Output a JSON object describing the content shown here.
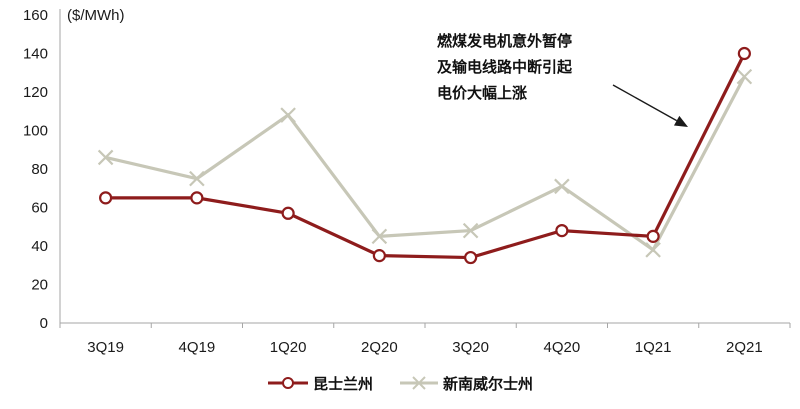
{
  "chart_data": {
    "type": "line",
    "title": "",
    "ylabel": "($/MWh)",
    "xlabel": "",
    "categories": [
      "3Q19",
      "4Q19",
      "1Q20",
      "2Q20",
      "3Q20",
      "4Q20",
      "1Q21",
      "2Q21"
    ],
    "series": [
      {
        "name": "昆士兰州",
        "values": [
          65,
          65,
          57,
          35,
          34,
          48,
          45,
          140
        ],
        "color": "#8E1C1C",
        "marker": "circle"
      },
      {
        "name": "新南威尔士州",
        "values": [
          86,
          75,
          108,
          45,
          48,
          71,
          38,
          128
        ],
        "color": "#C7C7B7",
        "marker": "x"
      }
    ],
    "ylim": [
      0,
      160
    ],
    "ytick_step": 20,
    "grid": false,
    "legend_position": "bottom",
    "annotation": {
      "lines": [
        "燃煤发电机意外暂停",
        "及输电线路中断引起",
        "电价大幅上涨"
      ]
    }
  },
  "colors": {
    "axis": "#A6A6A6",
    "text": "#1A1A1A",
    "arrow": "#1A1A1A",
    "background": "#FFFFFF"
  }
}
